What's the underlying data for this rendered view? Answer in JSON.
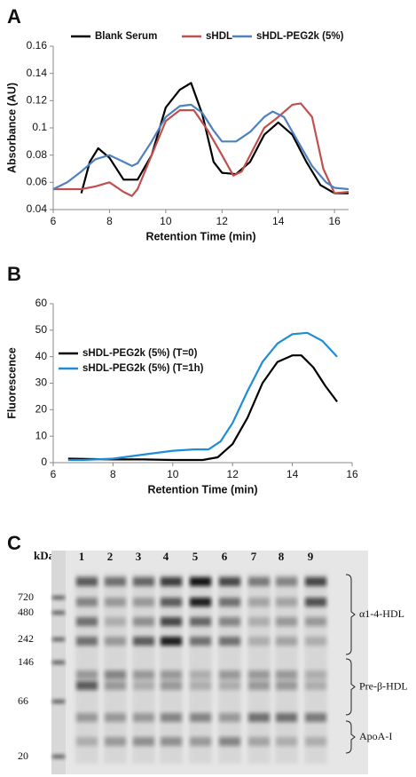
{
  "chart_data": [
    {
      "type": "line",
      "label": "A",
      "x_label": "Retention Time (min)",
      "y_label": "Absorbance (AU)",
      "xlim": [
        6,
        16.5
      ],
      "xticks": [
        6,
        8,
        10,
        12,
        14,
        16
      ],
      "ylim": [
        0.04,
        0.16
      ],
      "yticks": [
        0.04,
        0.06,
        0.08,
        0.1,
        0.12,
        0.14,
        0.16
      ],
      "legend": "top",
      "series": [
        {
          "name": "Blank Serum",
          "color": "#000000",
          "x": [
            7,
            7.3,
            7.6,
            8,
            8.5,
            9,
            9.5,
            10,
            10.5,
            10.9,
            11.3,
            11.7,
            12,
            12.5,
            13,
            13.5,
            14,
            14.5,
            15,
            15.5,
            16,
            16.5
          ],
          "values": [
            0.052,
            0.075,
            0.085,
            0.078,
            0.062,
            0.062,
            0.08,
            0.115,
            0.128,
            0.133,
            0.11,
            0.075,
            0.067,
            0.066,
            0.075,
            0.095,
            0.104,
            0.095,
            0.075,
            0.058,
            0.052,
            0.052
          ]
        },
        {
          "name": "sHDL",
          "color": "#c0504d",
          "x": [
            6,
            6.5,
            7,
            7.5,
            8,
            8.5,
            8.8,
            9,
            9.5,
            10,
            10.5,
            11,
            11.5,
            12,
            12.4,
            12.7,
            13,
            13.5,
            14,
            14.5,
            14.8,
            15.2,
            15.6,
            16,
            16.5
          ],
          "values": [
            0.055,
            0.055,
            0.055,
            0.057,
            0.06,
            0.053,
            0.05,
            0.055,
            0.08,
            0.105,
            0.113,
            0.113,
            0.098,
            0.08,
            0.065,
            0.068,
            0.08,
            0.1,
            0.108,
            0.117,
            0.118,
            0.108,
            0.07,
            0.052,
            0.053
          ]
        },
        {
          "name": "sHDL-PEG2k (5%)",
          "color": "#4f81bd",
          "x": [
            6,
            6.5,
            7,
            7.5,
            8,
            8.5,
            8.8,
            9,
            9.5,
            10,
            10.5,
            10.9,
            11.3,
            11.7,
            12,
            12.5,
            13,
            13.5,
            13.8,
            14.2,
            14.7,
            15.2,
            15.7,
            16,
            16.5
          ],
          "values": [
            0.055,
            0.06,
            0.068,
            0.077,
            0.08,
            0.075,
            0.072,
            0.074,
            0.09,
            0.108,
            0.116,
            0.117,
            0.111,
            0.098,
            0.09,
            0.09,
            0.097,
            0.108,
            0.112,
            0.108,
            0.09,
            0.072,
            0.06,
            0.056,
            0.055
          ]
        }
      ]
    },
    {
      "type": "line",
      "label": "B",
      "x_label": "Retention Time (min)",
      "y_label": "Fluorescence",
      "xlim": [
        6,
        16
      ],
      "xticks": [
        6,
        8,
        10,
        12,
        14,
        16
      ],
      "ylim": [
        0,
        60
      ],
      "yticks": [
        0,
        10,
        20,
        30,
        40,
        50,
        60
      ],
      "legend": "upper left",
      "series": [
        {
          "name": "sHDL-PEG2k (5%) (T=0)",
          "color": "#000000",
          "x": [
            6.5,
            8,
            9,
            10,
            11,
            11.5,
            12,
            12.5,
            13,
            13.5,
            14,
            14.3,
            14.7,
            15.1,
            15.5
          ],
          "values": [
            1.5,
            1.2,
            1.2,
            1,
            1,
            2,
            7,
            17,
            30,
            38,
            40.5,
            40.5,
            36,
            29,
            23
          ]
        },
        {
          "name": "sHDL-PEG2k (5%) (T=1h)",
          "color": "#1f8dd6",
          "x": [
            6.5,
            7,
            8,
            9,
            10,
            10.7,
            11.2,
            11.6,
            12,
            12.5,
            13,
            13.5,
            14,
            14.5,
            15,
            15.5
          ],
          "values": [
            1,
            1,
            1.5,
            3,
            4.5,
            5,
            5,
            8,
            15,
            27,
            38,
            45,
            48.5,
            49,
            46,
            40
          ]
        }
      ]
    }
  ],
  "gel": {
    "label": "C",
    "unit": "kDa",
    "lanes": [
      "1",
      "2",
      "3",
      "4",
      "5",
      "6",
      "7",
      "8",
      "9"
    ],
    "markers": [
      "720",
      "480",
      "242",
      "146",
      "66",
      "20"
    ],
    "regions": [
      "α1-4-HDL",
      "Pre-β-HDL",
      "ApoA-I"
    ]
  }
}
